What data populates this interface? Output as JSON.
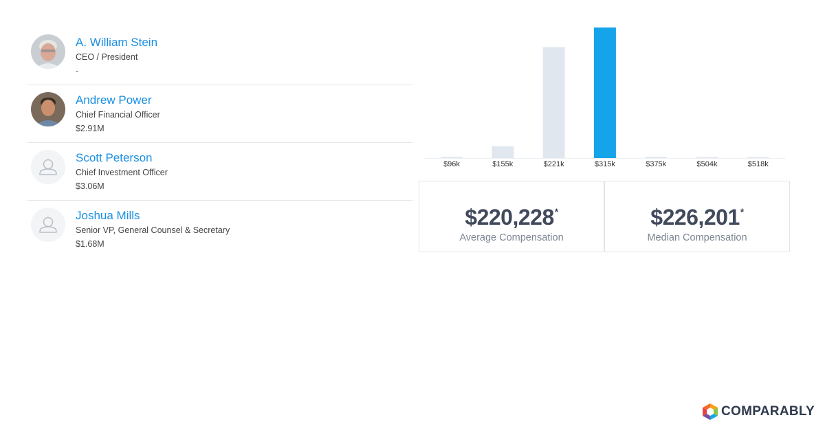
{
  "executives": [
    {
      "name": "A. William Stein",
      "title": "CEO / President",
      "compensation": "-",
      "avatar": "photo-gray-hair"
    },
    {
      "name": "Andrew Power",
      "title": "Chief Financial Officer",
      "compensation": "$2.91M",
      "avatar": "photo-dark-hair"
    },
    {
      "name": "Scott Peterson",
      "title": "Chief Investment Officer",
      "compensation": "$3.06M",
      "avatar": "placeholder"
    },
    {
      "name": "Joshua Mills",
      "title": "Senior VP, General Counsel & Secretary",
      "compensation": "$1.68M",
      "avatar": "placeholder"
    }
  ],
  "chart_data": {
    "type": "bar",
    "categories": [
      "$96k",
      "$155k",
      "$221k",
      "$315k",
      "$375k",
      "$504k",
      "$518k"
    ],
    "values": [
      1,
      9,
      85,
      100,
      1,
      0.5,
      0.5
    ],
    "highlight_index": 3,
    "colors": {
      "default": "#e1e7ee",
      "highlight": "#15a3ea"
    },
    "title": "",
    "xlabel": "",
    "ylabel": ""
  },
  "stats": {
    "average": {
      "value": "$220,228",
      "mark": "*",
      "label": "Average Compensation"
    },
    "median": {
      "value": "$226,201",
      "mark": "*",
      "label": "Median Compensation"
    }
  },
  "brand": {
    "name": "COMPARABLY"
  }
}
